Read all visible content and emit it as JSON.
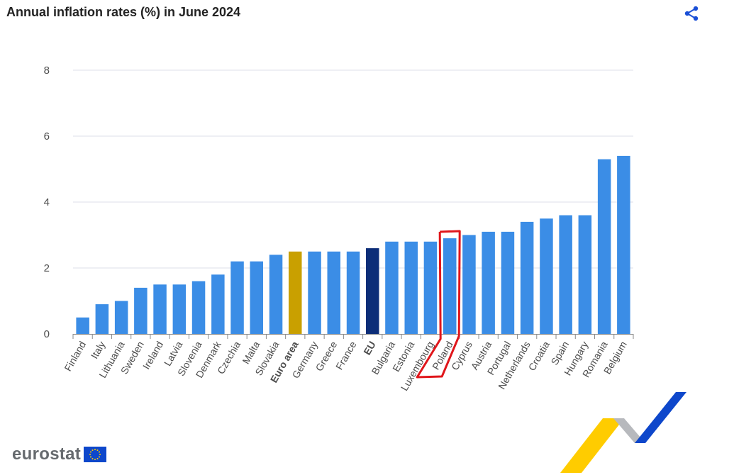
{
  "header": {
    "title": "Annual inflation rates (%) in June 2024",
    "share_icon": "share-icon"
  },
  "brand": {
    "name": "eurostat",
    "flag_icon": "eu-flag-icon"
  },
  "colors": {
    "bar": "#3b8de6",
    "euro_area": "#c9a000",
    "eu": "#0c2d78",
    "highlight": "#e0161b",
    "grid": "#dcdfe8"
  },
  "chart_data": {
    "type": "bar",
    "title": "Annual inflation rates (%) in June 2024",
    "categories": [
      "Finland",
      "Italy",
      "Lithuania",
      "Sweden",
      "Ireland",
      "Latvia",
      "Slovenia",
      "Denmark",
      "Czechia",
      "Malta",
      "Slovakia",
      "Euro area",
      "Germany",
      "Greece",
      "France",
      "EU",
      "Bulgaria",
      "Estonia",
      "Luxembourg",
      "Poland",
      "Cyprus",
      "Austria",
      "Portugal",
      "Netherlands",
      "Croatia",
      "Spain",
      "Hungary",
      "Romania",
      "Belgium"
    ],
    "values": [
      0.5,
      0.9,
      1.0,
      1.4,
      1.5,
      1.5,
      1.6,
      1.8,
      2.2,
      2.2,
      2.4,
      2.5,
      2.5,
      2.5,
      2.5,
      2.6,
      2.8,
      2.8,
      2.8,
      2.9,
      3.0,
      3.1,
      3.1,
      3.4,
      3.5,
      3.6,
      3.6,
      5.3,
      5.4
    ],
    "aggregates": [
      "Euro area",
      "EU"
    ],
    "highlighted": "Poland",
    "ylim": [
      0,
      8
    ],
    "yticks": [
      0,
      2,
      4,
      6,
      8
    ],
    "grid": true,
    "xlabel": "",
    "ylabel": ""
  }
}
